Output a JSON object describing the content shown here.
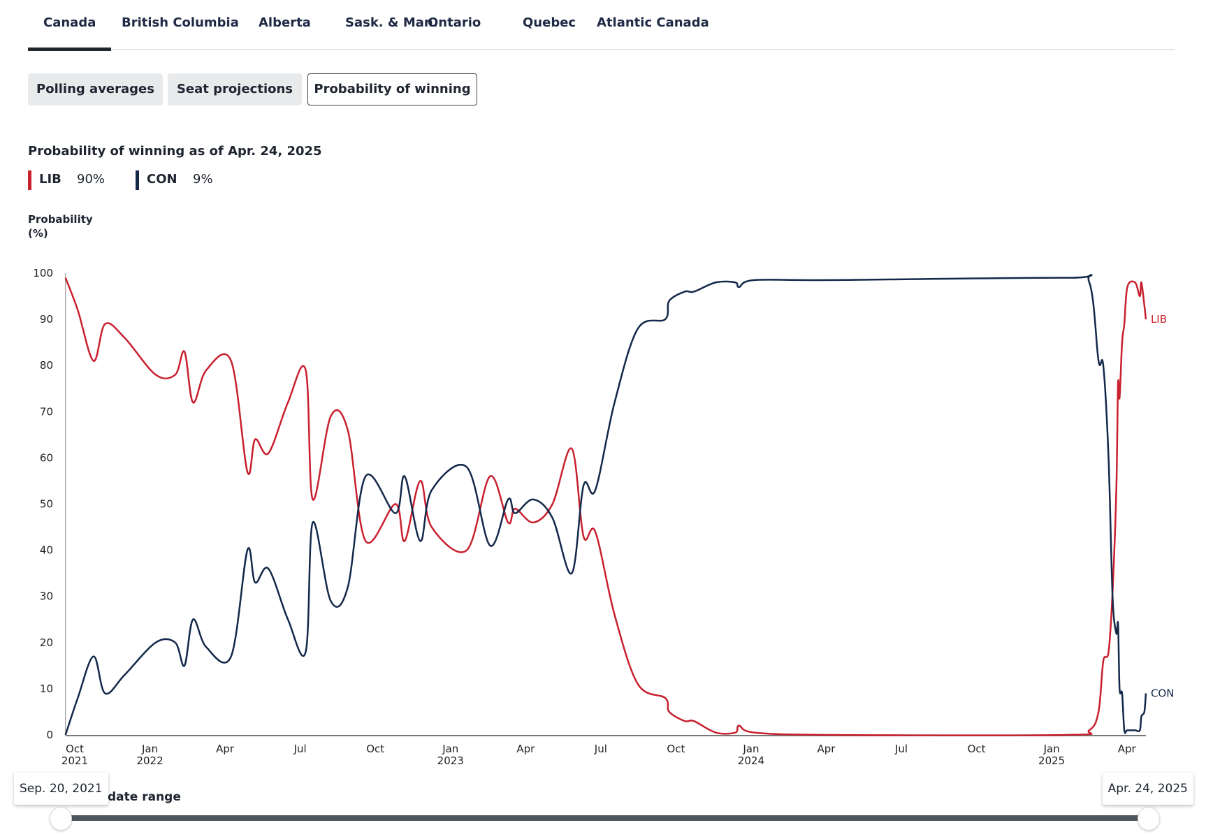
{
  "tabs": [
    "Canada",
    "British Columbia",
    "Alberta",
    "Sask. & Man.",
    "Ontario",
    "Quebec",
    "Atlantic Canada"
  ],
  "views": [
    "Polling averages",
    "Seat projections",
    "Probability of winning"
  ],
  "colors": {
    "lib": "#c8202f",
    "con": "#14284a"
  },
  "chart_title": "Probability of winning as of Apr. 24, 2025",
  "legend": [
    {
      "name": "LIB",
      "value": "90%"
    },
    {
      "name": "CON",
      "value": "9%"
    }
  ],
  "slider": {
    "start": "Sep. 20, 2021",
    "end": "Apr. 24, 2025",
    "label": "date range"
  },
  "chart_data": {
    "type": "line",
    "ylabel_line1": "Probability",
    "ylabel_line2": "(%)",
    "ylim": [
      0,
      100
    ],
    "yticks": [
      0,
      10,
      20,
      30,
      40,
      50,
      60,
      70,
      80,
      90,
      100
    ],
    "x_units": "months since Oct 1, 2021",
    "xlim": [
      -0.37,
      42.76
    ],
    "xticks": [
      {
        "x": 0,
        "l1": "Oct",
        "l2": "2021"
      },
      {
        "x": 3,
        "l1": "Jan",
        "l2": "2022"
      },
      {
        "x": 6,
        "l1": "Apr",
        "l2": ""
      },
      {
        "x": 9,
        "l1": "Jul",
        "l2": ""
      },
      {
        "x": 12,
        "l1": "Oct",
        "l2": ""
      },
      {
        "x": 15,
        "l1": "Jan",
        "l2": "2023"
      },
      {
        "x": 18,
        "l1": "Apr",
        "l2": ""
      },
      {
        "x": 21,
        "l1": "Jul",
        "l2": ""
      },
      {
        "x": 24,
        "l1": "Oct",
        "l2": ""
      },
      {
        "x": 27,
        "l1": "Jan",
        "l2": "2024"
      },
      {
        "x": 30,
        "l1": "Apr",
        "l2": ""
      },
      {
        "x": 33,
        "l1": "Jul",
        "l2": ""
      },
      {
        "x": 36,
        "l1": "Oct",
        "l2": ""
      },
      {
        "x": 39,
        "l1": "Jan",
        "l2": "2025"
      },
      {
        "x": 42,
        "l1": "Apr",
        "l2": ""
      }
    ],
    "series": [
      {
        "name": "LIB",
        "x": [
          -0.37,
          0.12,
          0.75,
          1.21,
          1.99,
          3.23,
          4.01,
          4.38,
          4.72,
          5.25,
          6.24,
          6.89,
          7.2,
          7.73,
          8.51,
          9.22,
          9.5,
          10.22,
          10.9,
          11.61,
          12.8,
          13.17,
          13.79,
          14.25,
          15.65,
          16.58,
          17.3,
          17.58,
          18.3,
          19.07,
          19.84,
          20.31,
          20.78,
          21.55,
          22.48,
          23.57,
          23.73,
          24.35,
          24.72,
          25.59,
          26.37,
          26.52,
          27.14,
          30.25,
          39.57,
          40.5,
          40.87,
          41.06,
          41.27,
          41.43,
          41.58,
          41.65,
          41.71,
          41.81,
          41.9,
          42.02,
          42.33,
          42.52,
          42.58,
          42.7,
          42.76
        ],
        "values": [
          99,
          92,
          81,
          89,
          86,
          78,
          78,
          83,
          72,
          79,
          81,
          57,
          64,
          61,
          72,
          79,
          51,
          69,
          66,
          42,
          50,
          42,
          55,
          45,
          40,
          56,
          46,
          49,
          46,
          50,
          62,
          43,
          44,
          26,
          11,
          8,
          5,
          3,
          3,
          0.5,
          0.5,
          2,
          0.5,
          0,
          0,
          1,
          5,
          16,
          18,
          31,
          53,
          76,
          73,
          85,
          89,
          97,
          98,
          95,
          98,
          93,
          90
        ]
      },
      {
        "name": "CON",
        "x": [
          -0.37,
          0.12,
          0.75,
          1.21,
          1.99,
          3.23,
          4.01,
          4.38,
          4.72,
          5.25,
          6.24,
          6.89,
          7.2,
          7.73,
          8.51,
          9.22,
          9.5,
          10.22,
          10.9,
          11.61,
          12.8,
          13.17,
          13.79,
          14.25,
          15.65,
          16.58,
          17.3,
          17.58,
          18.3,
          19.07,
          19.84,
          20.31,
          20.78,
          21.55,
          22.48,
          23.57,
          23.73,
          24.35,
          24.72,
          25.59,
          26.37,
          26.52,
          27.14,
          30.25,
          39.57,
          40.5,
          40.87,
          41.06,
          41.27,
          41.43,
          41.58,
          41.65,
          41.71,
          41.81,
          41.9,
          42.02,
          42.33,
          42.52,
          42.58,
          42.7,
          42.76
        ],
        "values": [
          0,
          8,
          17,
          9,
          13,
          20,
          20,
          15,
          25,
          19,
          17,
          40,
          33,
          36,
          25,
          18,
          46,
          29,
          32,
          56,
          48,
          56,
          42,
          53,
          58,
          41,
          51,
          48,
          51,
          47,
          35,
          54,
          53,
          72,
          88,
          90,
          94,
          96,
          96,
          98,
          98,
          97,
          98.5,
          98.5,
          99,
          98,
          81,
          80,
          60,
          30,
          22,
          24,
          10,
          9,
          1,
          1,
          1,
          1,
          4,
          5,
          9
        ]
      }
    ]
  }
}
